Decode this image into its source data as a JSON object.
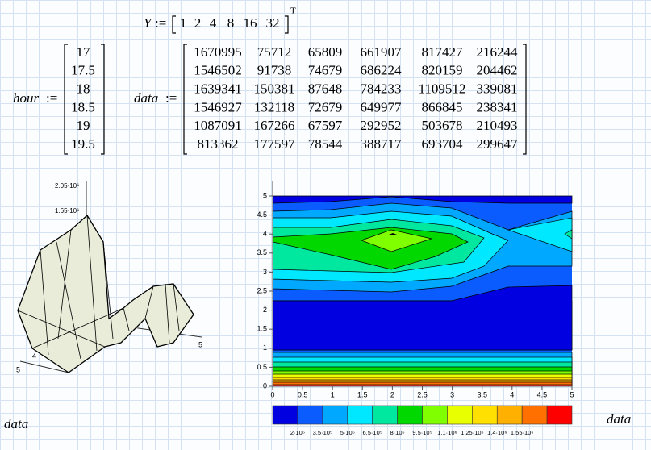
{
  "Y": {
    "name": "Y",
    "assign": ":=",
    "values": [
      1,
      2,
      4,
      8,
      16,
      32
    ],
    "transpose": "T"
  },
  "hour": {
    "name": "hour",
    "assign": ":=",
    "values": [
      17,
      17.5,
      18,
      18.5,
      19,
      19.5
    ]
  },
  "data": {
    "name": "data",
    "assign": ":=",
    "rows": [
      [
        1670995,
        75712,
        65809,
        661907,
        817427,
        216244
      ],
      [
        1546502,
        91738,
        74679,
        686224,
        820159,
        204462
      ],
      [
        1639341,
        150381,
        87648,
        784233,
        1109512,
        339081
      ],
      [
        1546927,
        132118,
        72679,
        649977,
        866845,
        238341
      ],
      [
        1087091,
        167266,
        67597,
        292952,
        503678,
        210493
      ],
      [
        813362,
        177597,
        78544,
        388717,
        693704,
        299647
      ]
    ]
  },
  "surface_plot": {
    "z_labels": [
      "2.05·10⁶",
      "1.65·10⁶"
    ],
    "axis_labels": [
      "4",
      "5",
      "5"
    ],
    "caption": "data"
  },
  "contour_plot": {
    "xticks": [
      0,
      0.5,
      1,
      1.5,
      2,
      2.5,
      3,
      3.5,
      4,
      4.5,
      5
    ],
    "yticks": [
      0,
      0.5,
      1,
      1.5,
      2,
      2.5,
      3,
      3.5,
      4,
      4.5,
      5
    ],
    "legend_colors": [
      "#0000e0",
      "#0a5cff",
      "#00a8ff",
      "#00e8ff",
      "#00e8a0",
      "#00d800",
      "#80ff00",
      "#e8ff00",
      "#ffe000",
      "#ffb000",
      "#ff7000",
      "#ff0000"
    ],
    "legend_labels": [
      "2·10⁵",
      "3.5·10⁵",
      "5·10⁵",
      "6.5·10⁵",
      "8·10⁵",
      "9.5·10⁵",
      "1.1·10⁶",
      "1.25·10⁶",
      "1.4·10⁶",
      "1.55·10⁶"
    ],
    "caption": "data"
  }
}
